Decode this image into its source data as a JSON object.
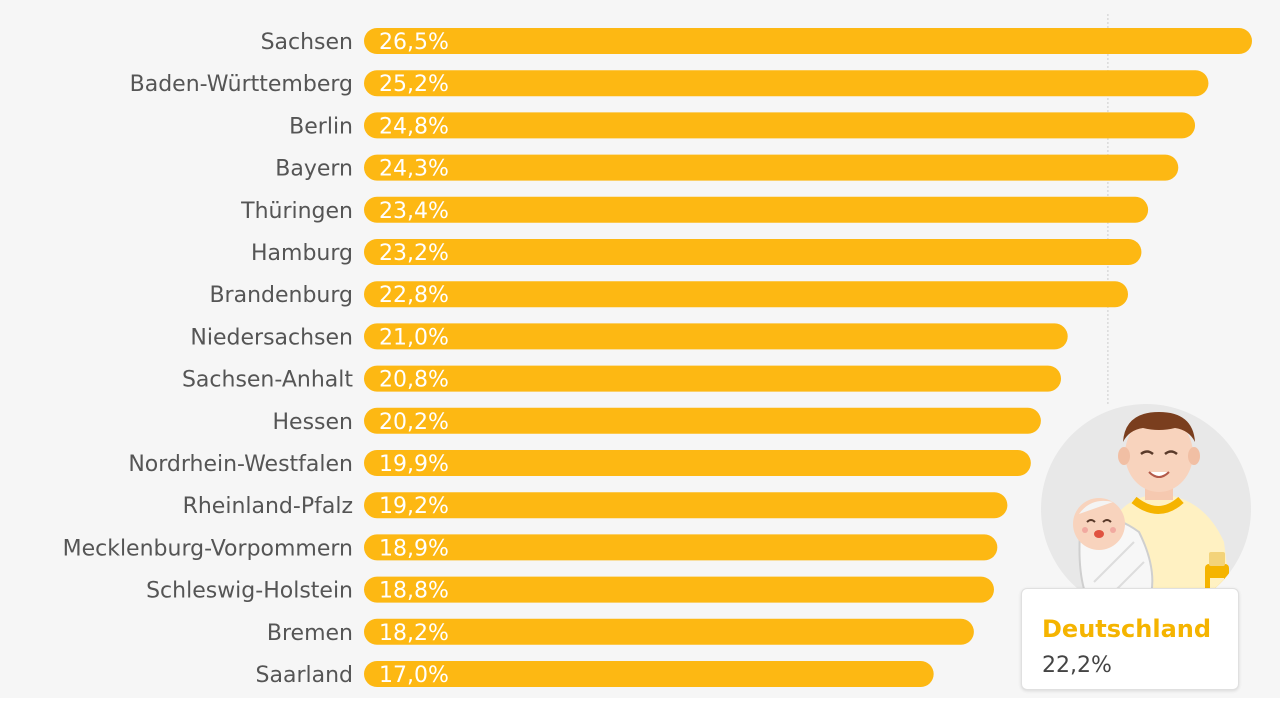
{
  "chart_data": {
    "type": "bar",
    "orientation": "horizontal",
    "categories": [
      "Sachsen",
      "Baden-Württemberg",
      "Berlin",
      "Bayern",
      "Thüringen",
      "Hamburg",
      "Brandenburg",
      "Niedersachsen",
      "Sachsen-Anhalt",
      "Hessen",
      "Nordrhein-Westfalen",
      "Rheinland-Pfalz",
      "Mecklenburg-Vorpommern",
      "Schleswig-Holstein",
      "Bremen",
      "Saarland"
    ],
    "values": [
      26.5,
      25.2,
      24.8,
      24.3,
      23.4,
      23.2,
      22.8,
      21.0,
      20.8,
      20.2,
      19.9,
      19.2,
      18.9,
      18.8,
      18.2,
      17.0
    ],
    "value_labels": [
      "26,5%",
      "25,2%",
      "24,8%",
      "24,3%",
      "23,4%",
      "23,2%",
      "22,8%",
      "21,0%",
      "20,8%",
      "20,2%",
      "19,9%",
      "19,2%",
      "18,9%",
      "18,8%",
      "18,2%",
      "17,0%"
    ],
    "xlim": [
      0,
      26.5
    ],
    "reference_line": {
      "label": "Deutschland",
      "value": 22.2,
      "value_label": "22,2%"
    },
    "colors": {
      "bar": "#fdb813",
      "value_text": "#ffffff",
      "label_text": "#555555",
      "reference_line": "#cccccc"
    }
  },
  "average_card": {
    "label": "Deutschland",
    "value": "22,2%"
  }
}
